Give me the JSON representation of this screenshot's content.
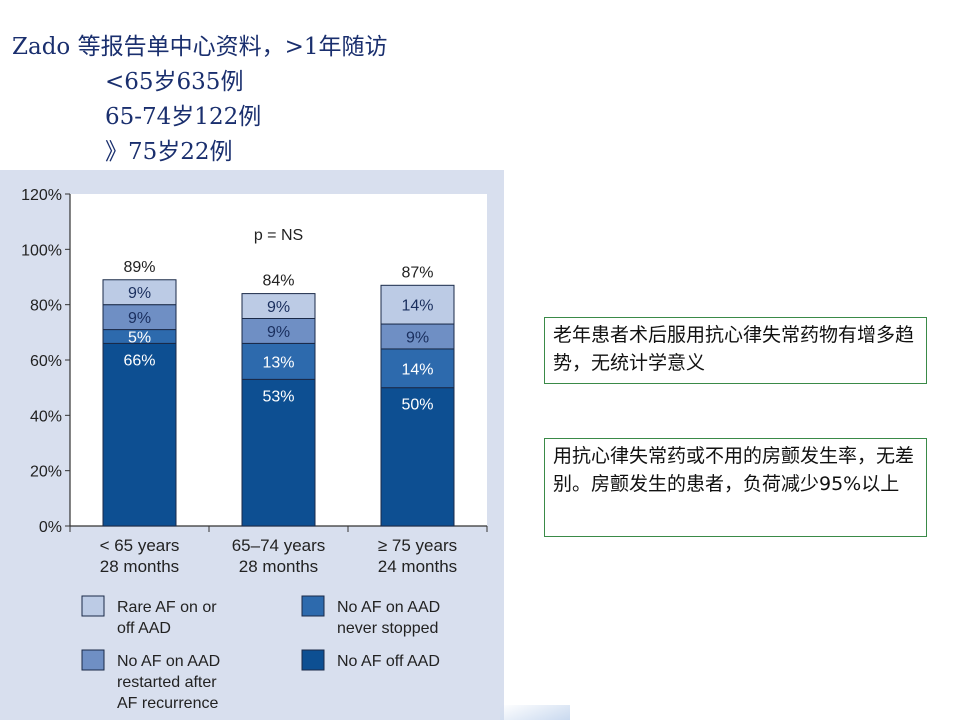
{
  "header": {
    "line1": "Zado 等报告单中心资料，>1年随访",
    "line2": "<65岁635例",
    "line3": "65-74岁122例",
    "line4": "》75岁22例"
  },
  "notes": {
    "note1": "老年患者术后服用抗心律失常药物有增多趋势，无统计学意义",
    "note2": "用抗心律失常药或不用的房颤发生率，无差别。房颤发生的患者，负荷减少95%以上"
  },
  "chart_data": {
    "type": "bar",
    "stacked": true,
    "annotation": "p = NS",
    "categories": [
      [
        "< 65 years",
        "28 months"
      ],
      [
        "65–74 years",
        "28 months"
      ],
      [
        "≥ 75 years",
        "24 months"
      ]
    ],
    "series": [
      {
        "name": "No AF off AAD",
        "values": [
          66,
          53,
          50
        ],
        "labels": [
          "66%",
          "53%",
          "50%"
        ],
        "color": "#0d4f92"
      },
      {
        "name": "No AF on AAD never stopped",
        "values": [
          5,
          13,
          14
        ],
        "labels": [
          "5%",
          "13%",
          "14%"
        ],
        "color": "#2d6aad"
      },
      {
        "name": "No AF on AAD restarted after AF recurrence",
        "values": [
          9,
          9,
          9
        ],
        "labels": [
          "9%",
          "9%",
          "9%"
        ],
        "color": "#6f8fc4"
      },
      {
        "name": "Rare AF on or off AAD",
        "values": [
          9,
          9,
          14
        ],
        "labels": [
          "9%",
          "9%",
          "14%"
        ],
        "color": "#bccbe5"
      }
    ],
    "totals": [
      "89%",
      "84%",
      "87%"
    ],
    "ylim": [
      0,
      120
    ],
    "yticks": [
      "0%",
      "20%",
      "40%",
      "60%",
      "80%",
      "100%",
      "120%"
    ],
    "legend": [
      {
        "lines": [
          "Rare AF on or",
          "off AAD"
        ],
        "color": "#bccbe5"
      },
      {
        "lines": [
          "No AF on AAD",
          "never stopped"
        ],
        "color": "#2d6aad"
      },
      {
        "lines": [
          "No AF on AAD",
          "restarted after",
          "AF recurrence"
        ],
        "color": "#6f8fc4"
      },
      {
        "lines": [
          "No AF off AAD"
        ],
        "color": "#0d4f92"
      }
    ]
  }
}
